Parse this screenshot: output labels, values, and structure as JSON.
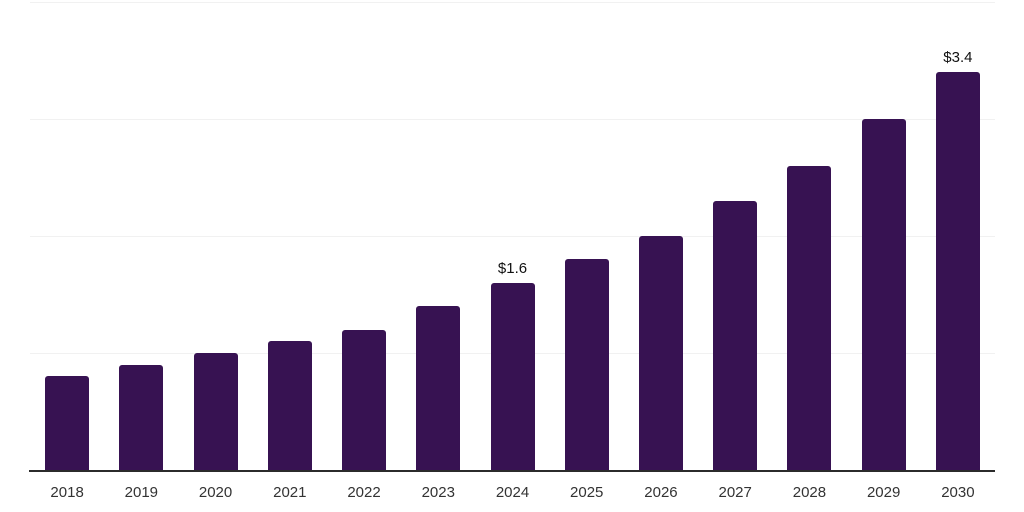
{
  "page": {
    "background": "#ffffff"
  },
  "chart_data": {
    "type": "bar",
    "categories": [
      "2018",
      "2019",
      "2020",
      "2021",
      "2022",
      "2023",
      "2024",
      "2025",
      "2026",
      "2027",
      "2028",
      "2029",
      "2030"
    ],
    "values": [
      0.8,
      0.9,
      1.0,
      1.1,
      1.2,
      1.4,
      1.6,
      1.8,
      2.0,
      2.3,
      2.6,
      3.0,
      3.4
    ],
    "data_labels": {
      "2024": "$1.6",
      "2030": "$3.4"
    },
    "title": "",
    "xlabel": "",
    "ylabel": "",
    "ylim": [
      0,
      4
    ],
    "gridlines_at": [
      1,
      2,
      3,
      4
    ],
    "grid": true,
    "legend": false,
    "layout": "single-series vertical bars, x-axis labels below baseline, value labels above 2024 and 2030 bars only",
    "colors": {
      "bar": "#371252",
      "gridline": "#f1f1f1",
      "axis": "#2b2b2b",
      "tick_label": "#333333",
      "data_label": "#111111",
      "background": "#ffffff"
    }
  }
}
